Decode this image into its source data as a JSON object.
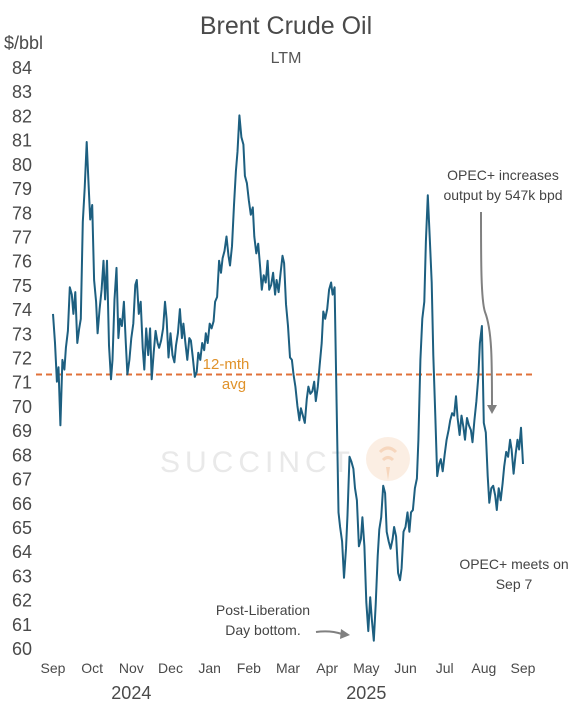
{
  "chart_data": {
    "type": "line",
    "title": "Brent Crude Oil",
    "subtitle": "LTM",
    "ylabel": "$/bbl",
    "ylim": [
      60,
      84
    ],
    "yticks": [
      60,
      61,
      62,
      63,
      64,
      65,
      66,
      67,
      68,
      69,
      70,
      71,
      72,
      73,
      74,
      75,
      76,
      77,
      78,
      79,
      80,
      81,
      82,
      83,
      84
    ],
    "xtick_labels": [
      "Sep",
      "Oct",
      "Nov",
      "Dec",
      "Jan",
      "Feb",
      "Mar",
      "Apr",
      "May",
      "Jun",
      "Jul",
      "Aug",
      "Sep"
    ],
    "year_labels": [
      {
        "label": "2024",
        "month_index": 2
      },
      {
        "label": "2025",
        "month_index": 8
      }
    ],
    "series": [
      {
        "color": "#1d5f80",
        "x_months": [
          0.0,
          0.05,
          0.1,
          0.14,
          0.19,
          0.24,
          0.29,
          0.33,
          0.38,
          0.43,
          0.48,
          0.52,
          0.57,
          0.62,
          0.67,
          0.71,
          0.76,
          0.81,
          0.86,
          0.9,
          0.95,
          1.0,
          1.05,
          1.1,
          1.14,
          1.19,
          1.24,
          1.29,
          1.33,
          1.38,
          1.43,
          1.48,
          1.52,
          1.57,
          1.62,
          1.67,
          1.71,
          1.76,
          1.81,
          1.86,
          1.9,
          1.95,
          2.0,
          2.05,
          2.1,
          2.14,
          2.19,
          2.24,
          2.29,
          2.33,
          2.38,
          2.43,
          2.48,
          2.52,
          2.57,
          2.62,
          2.67,
          2.71,
          2.76,
          2.81,
          2.86,
          2.9,
          2.95,
          3.0,
          3.05,
          3.1,
          3.14,
          3.19,
          3.24,
          3.29,
          3.33,
          3.38,
          3.43,
          3.48,
          3.52,
          3.57,
          3.62,
          3.67,
          3.71,
          3.76,
          3.81,
          3.86,
          3.9,
          3.95,
          4.0,
          4.05,
          4.1,
          4.14,
          4.19,
          4.24,
          4.29,
          4.33,
          4.38,
          4.43,
          4.48,
          4.52,
          4.57,
          4.62,
          4.67,
          4.71,
          4.76,
          4.81,
          4.86,
          4.9,
          4.95,
          5.0,
          5.05,
          5.1,
          5.14,
          5.19,
          5.24,
          5.29,
          5.33,
          5.38,
          5.43,
          5.48,
          5.52,
          5.57,
          5.62,
          5.67,
          5.71,
          5.76,
          5.81,
          5.86,
          5.9,
          5.95,
          6.0,
          6.05,
          6.1,
          6.14,
          6.19,
          6.24,
          6.29,
          6.33,
          6.38,
          6.43,
          6.48,
          6.52,
          6.57,
          6.62,
          6.67,
          6.71,
          6.76,
          6.81,
          6.86,
          6.9,
          6.95,
          7.0,
          7.05,
          7.1,
          7.14,
          7.19,
          7.24,
          7.29,
          7.33,
          7.38,
          7.43,
          7.48,
          7.52,
          7.57,
          7.62,
          7.67,
          7.71,
          7.76,
          7.81,
          7.86,
          7.9,
          7.95,
          8.0,
          8.05,
          8.1,
          8.14,
          8.19,
          8.24,
          8.29,
          8.33,
          8.38,
          8.43,
          8.48,
          8.52,
          8.57,
          8.62,
          8.67,
          8.71,
          8.76,
          8.81,
          8.86,
          8.9,
          8.95,
          9.0,
          9.05,
          9.1,
          9.14,
          9.19,
          9.24,
          9.29,
          9.33,
          9.38,
          9.43,
          9.48,
          9.52,
          9.57,
          9.62,
          9.67,
          9.71,
          9.76,
          9.81,
          9.86,
          9.9,
          9.95,
          10.0,
          10.05,
          10.1,
          10.14,
          10.19,
          10.24,
          10.29,
          10.33,
          10.38,
          10.43,
          10.48,
          10.52,
          10.57,
          10.62,
          10.67,
          10.71,
          10.76,
          10.81,
          10.86,
          10.9,
          10.95,
          11.0,
          11.05,
          11.1,
          11.14,
          11.19,
          11.24,
          11.29,
          11.33,
          11.38,
          11.43,
          11.48,
          11.52,
          11.57,
          11.62,
          11.67,
          11.71,
          11.76,
          11.81,
          11.86,
          11.9,
          11.95,
          12.0
        ],
        "values": [
          73.8,
          72.6,
          71.0,
          71.6,
          69.2,
          71.9,
          71.5,
          72.4,
          73.1,
          74.9,
          74.6,
          73.8,
          74.7,
          72.6,
          73.2,
          73.6,
          77.6,
          79.0,
          80.9,
          79.4,
          77.7,
          78.3,
          75.2,
          74.3,
          73.0,
          74.0,
          74.8,
          76.0,
          74.4,
          76.0,
          72.5,
          71.1,
          71.9,
          74.4,
          75.7,
          72.8,
          73.6,
          73.3,
          74.3,
          72.6,
          71.3,
          71.9,
          72.8,
          73.4,
          75.0,
          75.2,
          73.8,
          74.3,
          72.4,
          71.5,
          73.2,
          72.1,
          73.2,
          71.1,
          72.2,
          73.1,
          72.6,
          72.4,
          72.7,
          73.2,
          74.3,
          73.6,
          72.0,
          73.0,
          72.1,
          71.8,
          72.5,
          73.0,
          74.0,
          72.8,
          73.4,
          72.6,
          71.9,
          72.8,
          72.7,
          72.0,
          71.2,
          71.4,
          72.2,
          71.9,
          72.6,
          72.3,
          73.0,
          72.6,
          73.4,
          73.2,
          73.5,
          74.3,
          74.5,
          76.0,
          75.5,
          76.1,
          76.4,
          77.0,
          76.2,
          75.8,
          76.6,
          78.3,
          79.7,
          80.5,
          82.0,
          81.1,
          80.8,
          79.5,
          79.2,
          78.5,
          77.9,
          78.2,
          77.0,
          76.3,
          76.7,
          75.7,
          74.8,
          75.4,
          75.1,
          76.0,
          74.8,
          75.0,
          75.5,
          74.6,
          75.2,
          74.7,
          75.5,
          76.2,
          75.9,
          74.2,
          73.3,
          72.0,
          71.9,
          71.3,
          70.8,
          70.0,
          69.4,
          69.9,
          69.6,
          69.3,
          70.3,
          70.8,
          70.5,
          70.6,
          71.0,
          70.2,
          70.8,
          71.7,
          72.6,
          73.9,
          73.6,
          74.0,
          74.8,
          75.1,
          74.6,
          74.9,
          70.1,
          65.6,
          65.0,
          64.4,
          62.9,
          64.1,
          65.5,
          67.9,
          67.7,
          67.4,
          66.6,
          66.1,
          64.2,
          64.5,
          65.4,
          64.2,
          61.9,
          60.7,
          62.1,
          61.2,
          60.3,
          61.8,
          63.8,
          64.9,
          65.4,
          66.7,
          66.4,
          64.8,
          64.4,
          64.1,
          64.5,
          65.0,
          64.6,
          63.1,
          62.8,
          63.3,
          64.8,
          65.0,
          65.6,
          64.8,
          65.6,
          65.7,
          66.6,
          67.0,
          68.6,
          71.9,
          73.6,
          74.3,
          76.8,
          78.7,
          76.9,
          75.1,
          72.1,
          69.6,
          67.1,
          67.6,
          67.8,
          67.3,
          68.0,
          68.6,
          69.0,
          69.4,
          69.7,
          69.6,
          70.4,
          69.5,
          68.8,
          69.6,
          69.1,
          68.6,
          69.5,
          69.2,
          69.0,
          68.5,
          69.4,
          70.2,
          71.2,
          72.6,
          73.3,
          69.3,
          68.9,
          67.1,
          66.0,
          66.6,
          66.7,
          66.3,
          65.7,
          66.6,
          66.1,
          66.8,
          67.5,
          68.1,
          67.9,
          68.6,
          68.2,
          67.2,
          68.0,
          68.6,
          68.2,
          69.1,
          67.6
        ],
        "annotations_text_only": true
      }
    ],
    "reference_line": {
      "value": 71.3,
      "color": "#e0713a",
      "label_line1": "12-mth",
      "label_line2": "avg",
      "label_color": "#e0922a"
    },
    "annotations": [
      {
        "id": "opec-increase",
        "line1": "OPEC+ increases",
        "line2": "output by 547k bpd"
      },
      {
        "id": "opec-meets",
        "line1": "OPEC+ meets on",
        "line2": "Sep 7"
      },
      {
        "id": "post-liberation",
        "line1": "Post-Liberation",
        "line2": "Day bottom."
      }
    ],
    "watermark": "SUCCINCT",
    "grid": false,
    "legend": "none"
  }
}
